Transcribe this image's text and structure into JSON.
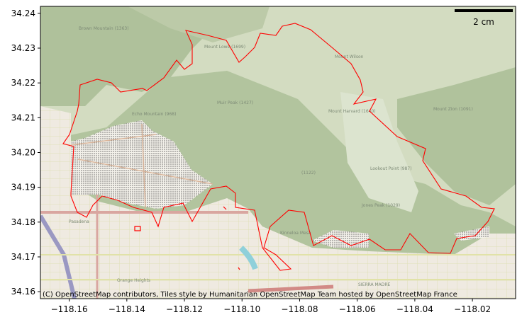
{
  "chart_data": {
    "type": "map",
    "xlim": [
      -118.17,
      -118.005
    ],
    "ylim": [
      34.158,
      34.242
    ],
    "x_ticks": [
      "−118.16",
      "−118.14",
      "−118.12",
      "−118.10",
      "−118.08",
      "−118.06",
      "−118.04",
      "−118.02"
    ],
    "x_tick_values": [
      -118.16,
      -118.14,
      -118.12,
      -118.1,
      -118.08,
      -118.06,
      -118.04,
      -118.02
    ],
    "y_ticks": [
      "34.16",
      "34.17",
      "34.18",
      "34.19",
      "34.20",
      "34.21",
      "34.22",
      "34.23",
      "34.24"
    ],
    "y_tick_values": [
      34.16,
      34.17,
      34.18,
      34.19,
      34.2,
      34.21,
      34.22,
      34.23,
      34.24
    ],
    "outline_color": "#ff0000",
    "scale_bar": {
      "label": "2 cm"
    },
    "attribution": "(C) OpenStreetMap contributors, Tiles style by Humanitarian OpenStreetMap Team hosted by OpenStreetMap France",
    "place_labels": [
      "Brown Mountain (1363)",
      "Mount Lowe (1699)",
      "Muir Peak (1427)",
      "Echo Mountain (968)",
      "Mount Wilson",
      "Mount Harvard (1640)",
      "Mount Zion (1091)",
      "Lookout Point (987)",
      "(1122)",
      "Jones Peak (1029)",
      "Kinneloa Mesa",
      "Pasadena",
      "Orange Heights",
      "SIERRA MADRE"
    ]
  }
}
